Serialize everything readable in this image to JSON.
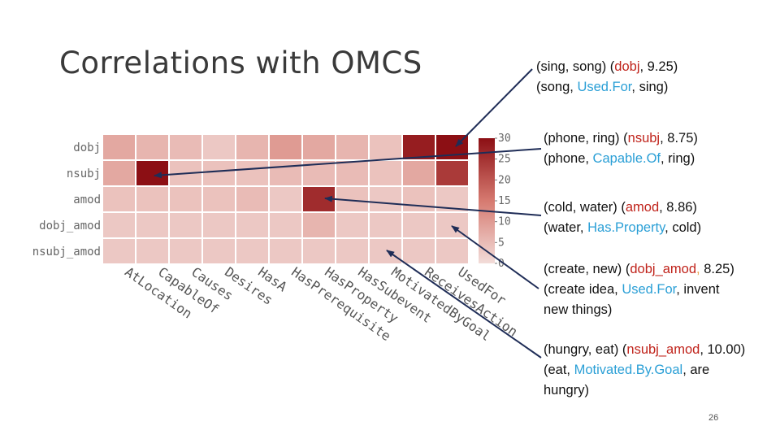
{
  "slide": {
    "title": "Correlations with OMCS",
    "page_number": "26"
  },
  "annotations": [
    {
      "line1": [
        "(sing, song) (",
        {
          "t": "dobj",
          "c": "red"
        },
        ", 9.25)"
      ],
      "line2": [
        "(song, ",
        {
          "t": "Used.For",
          "c": "blue"
        },
        ", sing)"
      ]
    },
    {
      "line1": [
        "(phone, ring) (",
        {
          "t": "nsubj",
          "c": "red"
        },
        ", 8.75)"
      ],
      "line2": [
        "(phone, ",
        {
          "t": "Capable.Of",
          "c": "blue"
        },
        ", ring)"
      ]
    },
    {
      "line1": [
        "(cold, water) (",
        {
          "t": "amod",
          "c": "red"
        },
        ", 8.86)"
      ],
      "line2": [
        "(water, ",
        {
          "t": "Has.Property",
          "c": "blue"
        },
        ", cold)"
      ]
    },
    {
      "line1": [
        "(create, new) (",
        {
          "t": "dobj_amod",
          "c": "red"
        },
        {
          "t": ",",
          "c": "orange"
        },
        " 8.25)"
      ],
      "line2": [
        "(create idea, ",
        {
          "t": "Used.For",
          "c": "blue"
        },
        ", invent"
      ],
      "line3": [
        "new things)"
      ]
    },
    {
      "line1": [
        "(hungry, eat) (",
        {
          "t": "nsubj_amod",
          "c": "red"
        },
        ", 10.00)"
      ],
      "line2": [
        "(eat, ",
        {
          "t": "Motivated.By.Goal",
          "c": "blue"
        },
        ", are"
      ],
      "line3": [
        "hungry)"
      ]
    }
  ],
  "chart_data": {
    "type": "heatmap",
    "rows": [
      "dobj",
      "nsubj",
      "amod",
      "dobj_amod",
      "nsubj_amod"
    ],
    "columns": [
      "AtLocation",
      "CapableOf",
      "Causes",
      "Desires",
      "HasA",
      "HasPrerequisite",
      "HasProperty",
      "HasSubevent",
      "MotivatedByGoal",
      "ReceivesAction",
      "UsedFor"
    ],
    "values": [
      [
        8,
        6,
        5,
        3,
        6,
        10,
        8,
        6,
        4,
        28,
        30
      ],
      [
        8,
        30,
        4,
        4,
        4,
        5,
        5,
        5,
        4,
        8,
        24
      ],
      [
        4,
        4,
        4,
        4,
        5,
        3,
        26,
        4,
        3,
        4,
        3
      ],
      [
        3,
        3,
        3,
        3,
        3,
        3,
        6,
        3,
        3,
        3,
        3
      ],
      [
        3,
        3,
        3,
        3,
        3,
        3,
        3,
        3,
        3,
        3,
        3
      ]
    ],
    "colorbar": {
      "min": 0,
      "max": 30,
      "ticks": [
        0,
        5,
        10,
        15,
        20,
        25,
        30
      ]
    },
    "colors": {
      "low": "#f2dcd9",
      "high": "#8c0f14"
    }
  }
}
